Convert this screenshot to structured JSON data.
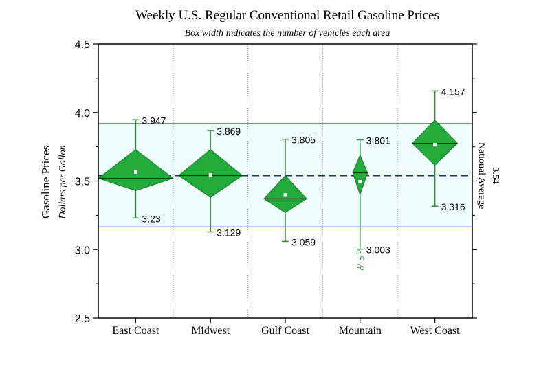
{
  "chart_data": {
    "type": "box",
    "title": "Weekly U.S. Regular Conventional Retail Gasoline Prices",
    "subtitle": "Box width indicates the number of vehicles each area",
    "ylabel": "Gasoline Prices",
    "ylabel_sub": "Dollars per Gallon",
    "ylim": [
      2.5,
      4.5
    ],
    "yticks": [
      2.5,
      3.0,
      3.5,
      4.0,
      4.5
    ],
    "ytick_labels": [
      "2.5",
      "3.0",
      "3.5",
      "4.0",
      "4.5"
    ],
    "categories": [
      "East Coast",
      "Midwest",
      "Gulf Coast",
      "Mountain",
      "West Coast"
    ],
    "groups": [
      {
        "name": "East Coast",
        "max": 3.947,
        "min": 3.23,
        "median": 3.52,
        "mean": 3.565,
        "diamond_top": 3.73,
        "diamond_bottom": 3.43,
        "relative_width": 0.96,
        "outliers": [],
        "max_label": "3.947",
        "min_label": "3.23"
      },
      {
        "name": "Midwest",
        "max": 3.869,
        "min": 3.129,
        "median": 3.54,
        "mean": 3.545,
        "diamond_top": 3.73,
        "diamond_bottom": 3.38,
        "relative_width": 0.82,
        "outliers": [],
        "max_label": "3.869",
        "min_label": "3.129"
      },
      {
        "name": "Gulf Coast",
        "max": 3.805,
        "min": 3.059,
        "median": 3.37,
        "mean": 3.398,
        "diamond_top": 3.54,
        "diamond_bottom": 3.27,
        "relative_width": 0.55,
        "outliers": [],
        "max_label": "3.805",
        "min_label": "3.059"
      },
      {
        "name": "Mountain",
        "max": 3.801,
        "min": 3.003,
        "median": 3.56,
        "mean": 3.495,
        "diamond_top": 3.69,
        "diamond_bottom": 3.4,
        "relative_width": 0.19,
        "outliers": [
          2.98,
          2.935,
          2.88,
          2.865
        ],
        "max_label": "3.801",
        "min_label": "3.003"
      },
      {
        "name": "West Coast",
        "max": 4.157,
        "min": 3.316,
        "median": 3.775,
        "mean": 3.765,
        "diamond_top": 3.945,
        "diamond_bottom": 3.615,
        "relative_width": 0.58,
        "outliers": [],
        "max_label": "4.157",
        "min_label": "3.316"
      }
    ],
    "reference": {
      "value": 3.54,
      "value_label": "3.54",
      "label": "National Average",
      "band": [
        3.165,
        3.92
      ]
    },
    "colors": {
      "fill": "#22aa3a",
      "stroke": "#1a7d2a",
      "whisker": "#2f8f2f",
      "reference": "#1b2a8c",
      "band_fill": "#eefdfd",
      "band_edge": "#7b7be0",
      "grid": "#8f9bcf"
    }
  }
}
